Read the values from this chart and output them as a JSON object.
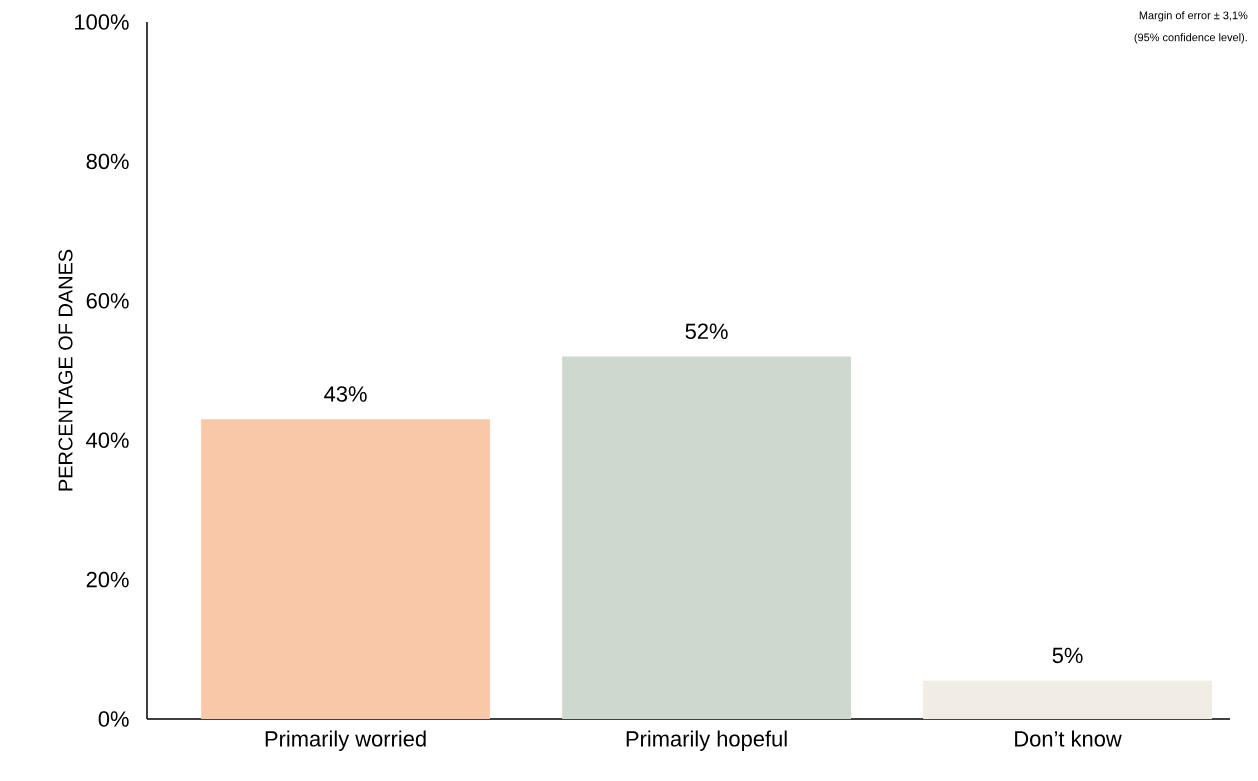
{
  "chart_data": {
    "type": "bar",
    "ylabel": "PERCENTAGE OF DANES",
    "categories": [
      "Primarily worried",
      "Primarily hopeful",
      "Don’t know"
    ],
    "values": [
      43,
      52,
      5.5
    ],
    "colors": [
      "#f9c8a8",
      "#cdd9ce",
      "#f1ece4"
    ],
    "value_labels": [
      "43%",
      "52%",
      "5%"
    ],
    "ylim": [
      0,
      100
    ],
    "yticks": [
      {
        "value": 0,
        "label": "0%"
      },
      {
        "value": 20,
        "label": "20%"
      },
      {
        "value": 40,
        "label": "40%"
      },
      {
        "value": 60,
        "label": "60%"
      },
      {
        "value": 80,
        "label": "80%"
      },
      {
        "value": 100,
        "label": "100%"
      }
    ],
    "grid": false,
    "annotations": [
      "Margin of error ± 3,1%",
      "(95% confidence level)."
    ]
  }
}
